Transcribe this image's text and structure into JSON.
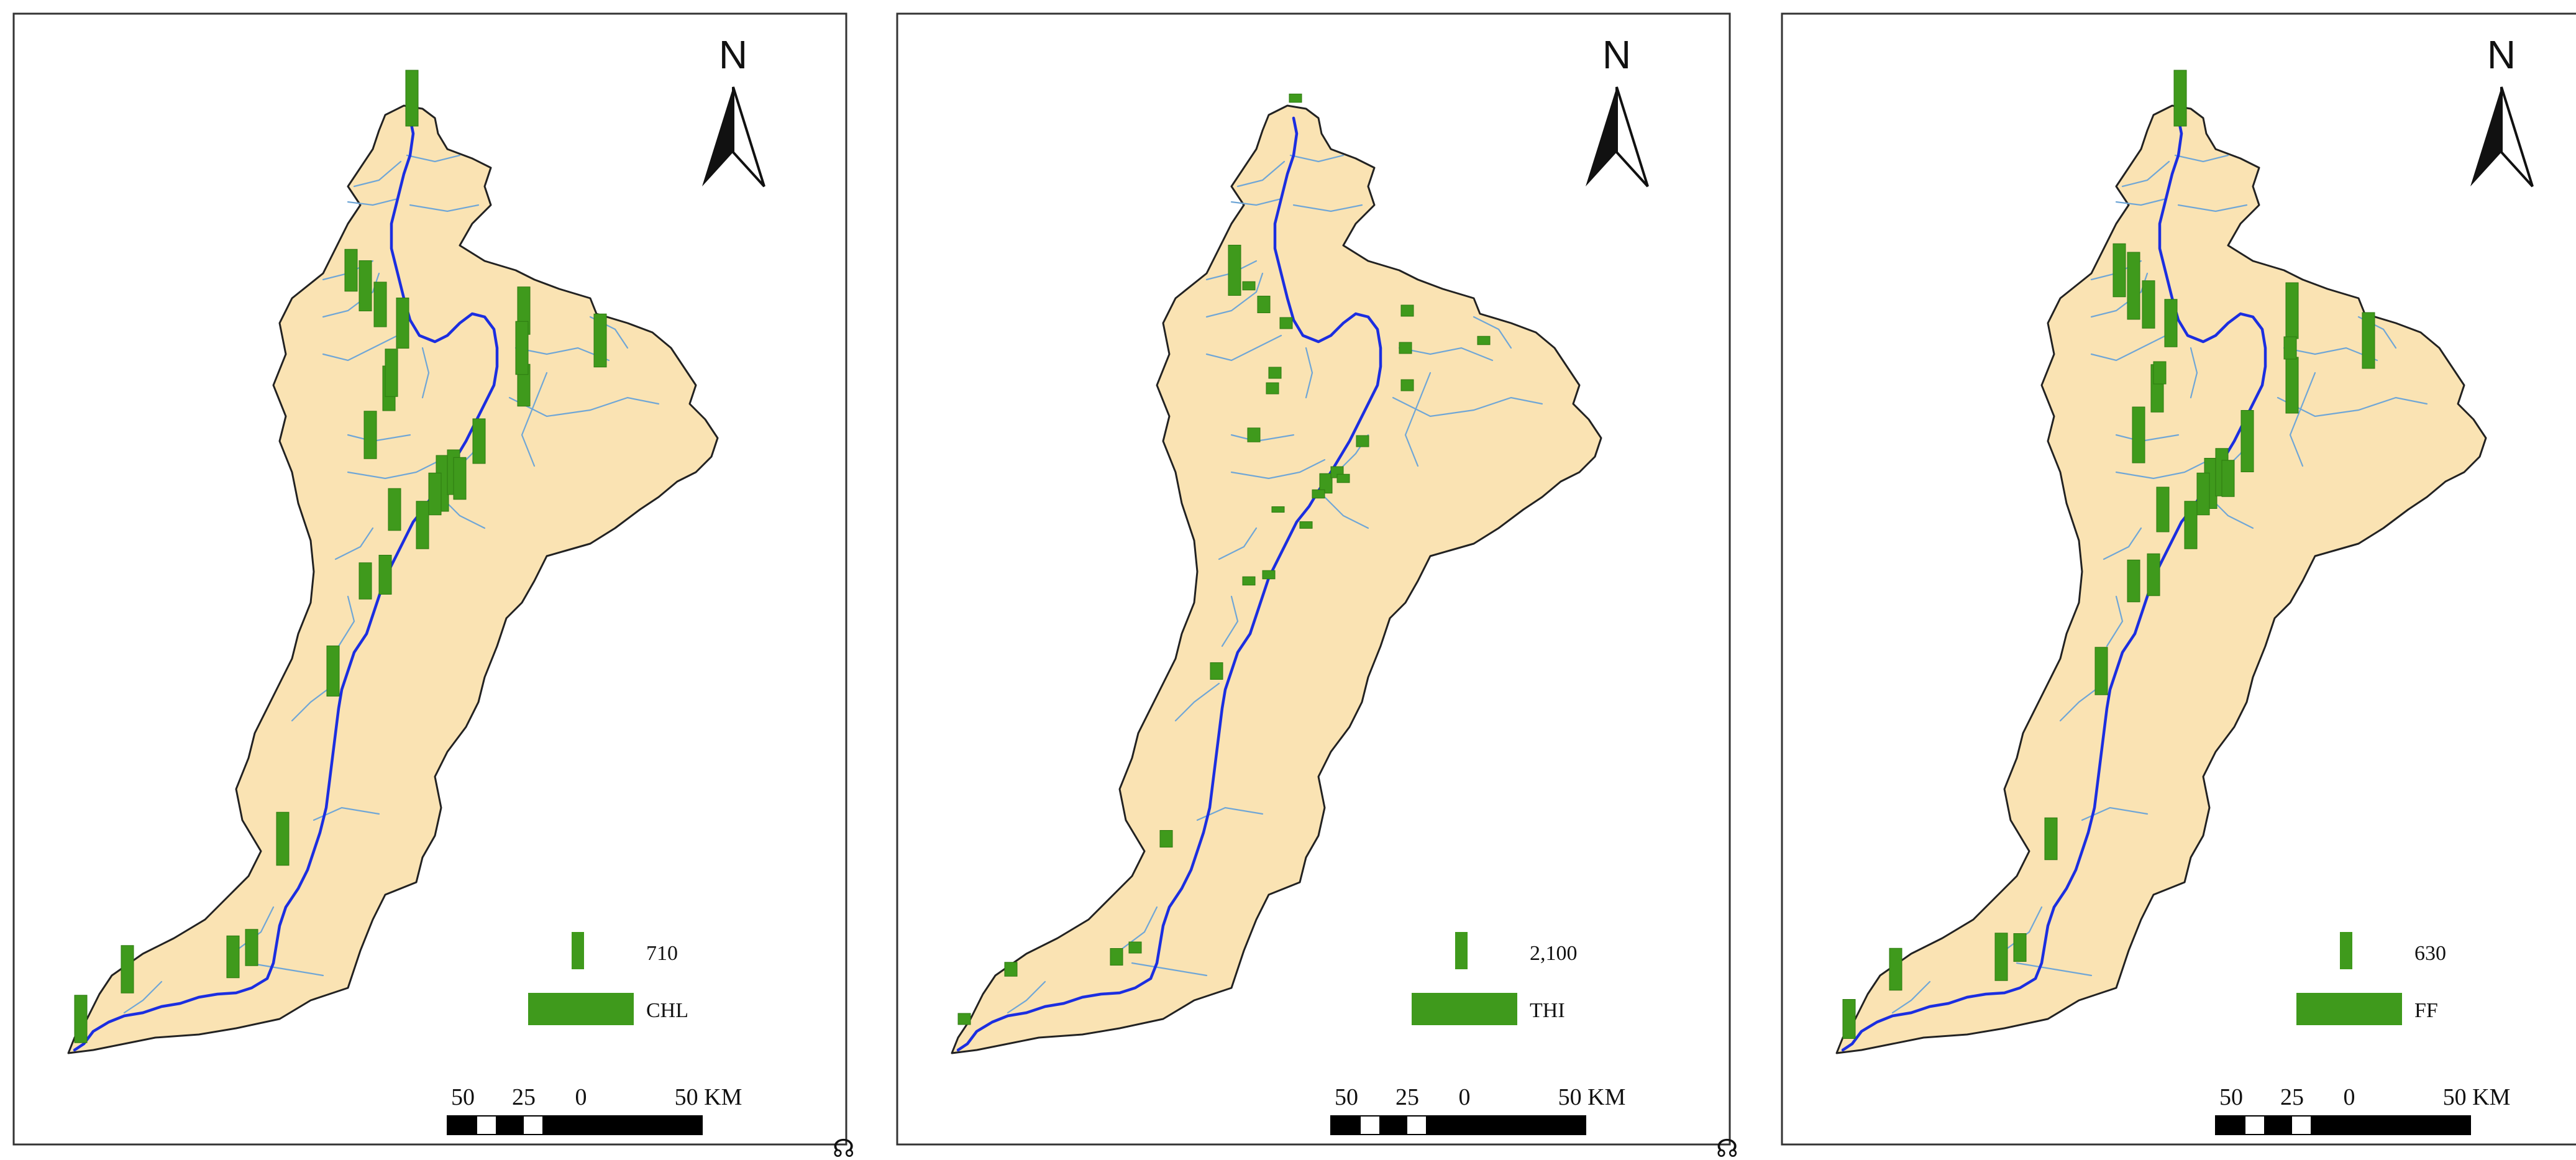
{
  "colors": {
    "land": "#fae3b3",
    "border": "#222222",
    "river_main": "#1b2ee0",
    "tributary": "#6fa6d6",
    "bar": "#3f9a1c",
    "frame": "#333333"
  },
  "scale_bar": {
    "labels": [
      "50",
      "25",
      "0",
      "50 KM"
    ]
  },
  "north": {
    "label": "N"
  },
  "marker": "☊",
  "panels": [
    {
      "id": "chl",
      "legend": {
        "value": "710",
        "name": "CHL"
      },
      "bar_heights": [
        1.0,
        0.75,
        0.8,
        0.9,
        0.85,
        0.95,
        0.8,
        0.85,
        0.75,
        0.8,
        1.0,
        0.8,
        0.75,
        0.85,
        0.65,
        0.7,
        0.9,
        0.95,
        0.85,
        0.75,
        0.65,
        0.85,
        0.9,
        0.95,
        0.85,
        0.75,
        0.75
      ]
    },
    {
      "id": "thi",
      "legend": {
        "value": "2,100",
        "name": "THI"
      },
      "bar_heights": [
        0.15,
        0.9,
        0.3,
        0.2,
        0.2,
        0.15,
        0.2,
        0.25,
        0.2,
        0.2,
        0.35,
        0.2,
        0.1,
        0.12,
        0.15,
        0.15,
        0.3,
        0.3,
        0.25,
        0.3,
        0.2,
        0.2,
        0.15,
        0.2,
        0.2,
        0.15,
        0.15
      ]
    },
    {
      "id": "ff",
      "legend": {
        "value": "630",
        "name": "FF"
      },
      "bar_heights": [
        1.0,
        0.95,
        0.85,
        0.85,
        1.0,
        1.0,
        0.85,
        1.0,
        1.0,
        1.1,
        0.9,
        0.85,
        0.8,
        0.85,
        0.75,
        0.75,
        0.85,
        0.75,
        0.75,
        0.85,
        0.5,
        0.7,
        1.2,
        0.4,
        0.4,
        0.75,
        0.65
      ]
    }
  ]
}
